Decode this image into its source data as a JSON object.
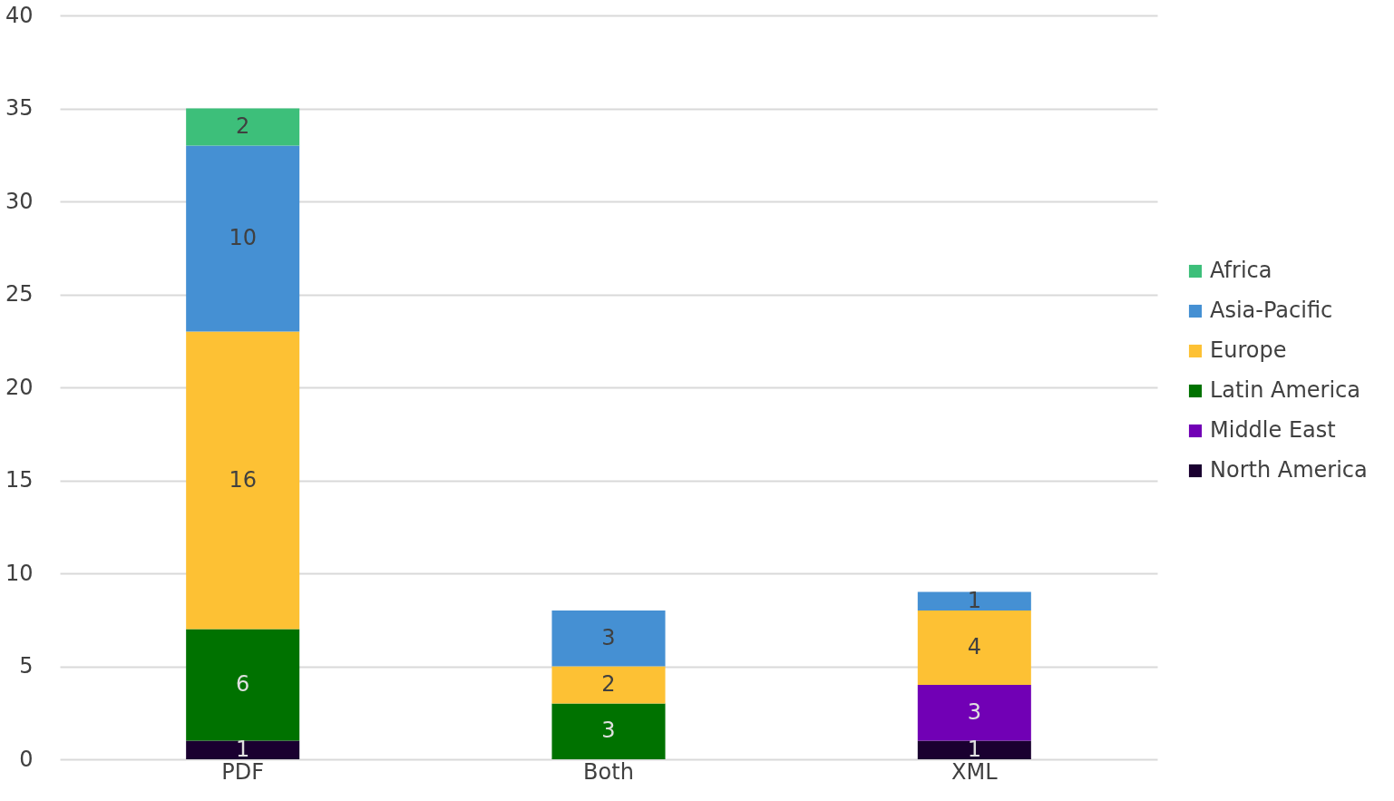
{
  "chart_data": {
    "type": "bar",
    "stacked": true,
    "categories": [
      "PDF",
      "Both",
      "XML"
    ],
    "series": [
      {
        "name": "North America",
        "color": "#1a0030",
        "values": [
          1,
          null,
          1
        ]
      },
      {
        "name": "Middle East",
        "color": "#7100b5",
        "values": [
          null,
          null,
          3
        ]
      },
      {
        "name": "Latin America",
        "color": "#007200",
        "values": [
          6,
          3,
          null
        ]
      },
      {
        "name": "Europe",
        "color": "#fdc134",
        "values": [
          16,
          2,
          4
        ]
      },
      {
        "name": "Asia-Pacific",
        "color": "#4590d3",
        "values": [
          10,
          3,
          1
        ]
      },
      {
        "name": "Africa",
        "color": "#3dbf7a",
        "values": [
          2,
          null,
          null
        ]
      }
    ],
    "ylim": [
      0,
      40
    ],
    "yticks": [
      0,
      5,
      10,
      15,
      20,
      25,
      30,
      35,
      40
    ],
    "grid": "y",
    "legend": "right",
    "data_labels": true
  }
}
